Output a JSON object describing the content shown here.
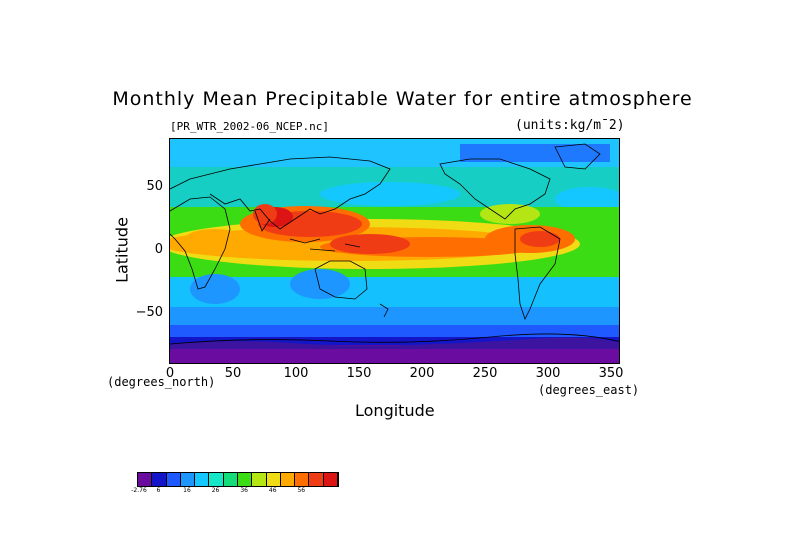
{
  "title": "Monthly Mean Precipitable Water for entire atmosphere",
  "file_label": "[PR_WTR_2002-06_NCEP.nc]",
  "units_label": "(units:kg/m¯2)",
  "y_axis": {
    "label": "Latitude",
    "unit": "(degrees_north)",
    "ticks": [
      "50",
      "0",
      "−50"
    ],
    "tick_values": [
      50,
      0,
      -50
    ],
    "range": [
      -90,
      90
    ]
  },
  "x_axis": {
    "label": "Longitude",
    "unit": "(degrees_east)",
    "ticks": [
      "0",
      "50",
      "100",
      "150",
      "200",
      "250",
      "300",
      "350"
    ],
    "tick_values": [
      0,
      50,
      100,
      150,
      200,
      250,
      300,
      350
    ],
    "range": [
      0,
      360
    ]
  },
  "colorbar": {
    "colors": [
      "#6a0ca0",
      "#1414c8",
      "#1e5aff",
      "#1e96ff",
      "#14c8ff",
      "#14e6c8",
      "#14dc78",
      "#3cdc14",
      "#b4e614",
      "#f0dc14",
      "#ffaa00",
      "#ff6e00",
      "#f03c14",
      "#dc1414"
    ],
    "labels": [
      "-2.76",
      "6",
      "16",
      "26",
      "36",
      "46",
      "56"
    ]
  },
  "map_colors": {
    "ocean_bg": "#1e96ff",
    "polar_south": "#6a0ca0",
    "coastline": "#000000"
  }
}
